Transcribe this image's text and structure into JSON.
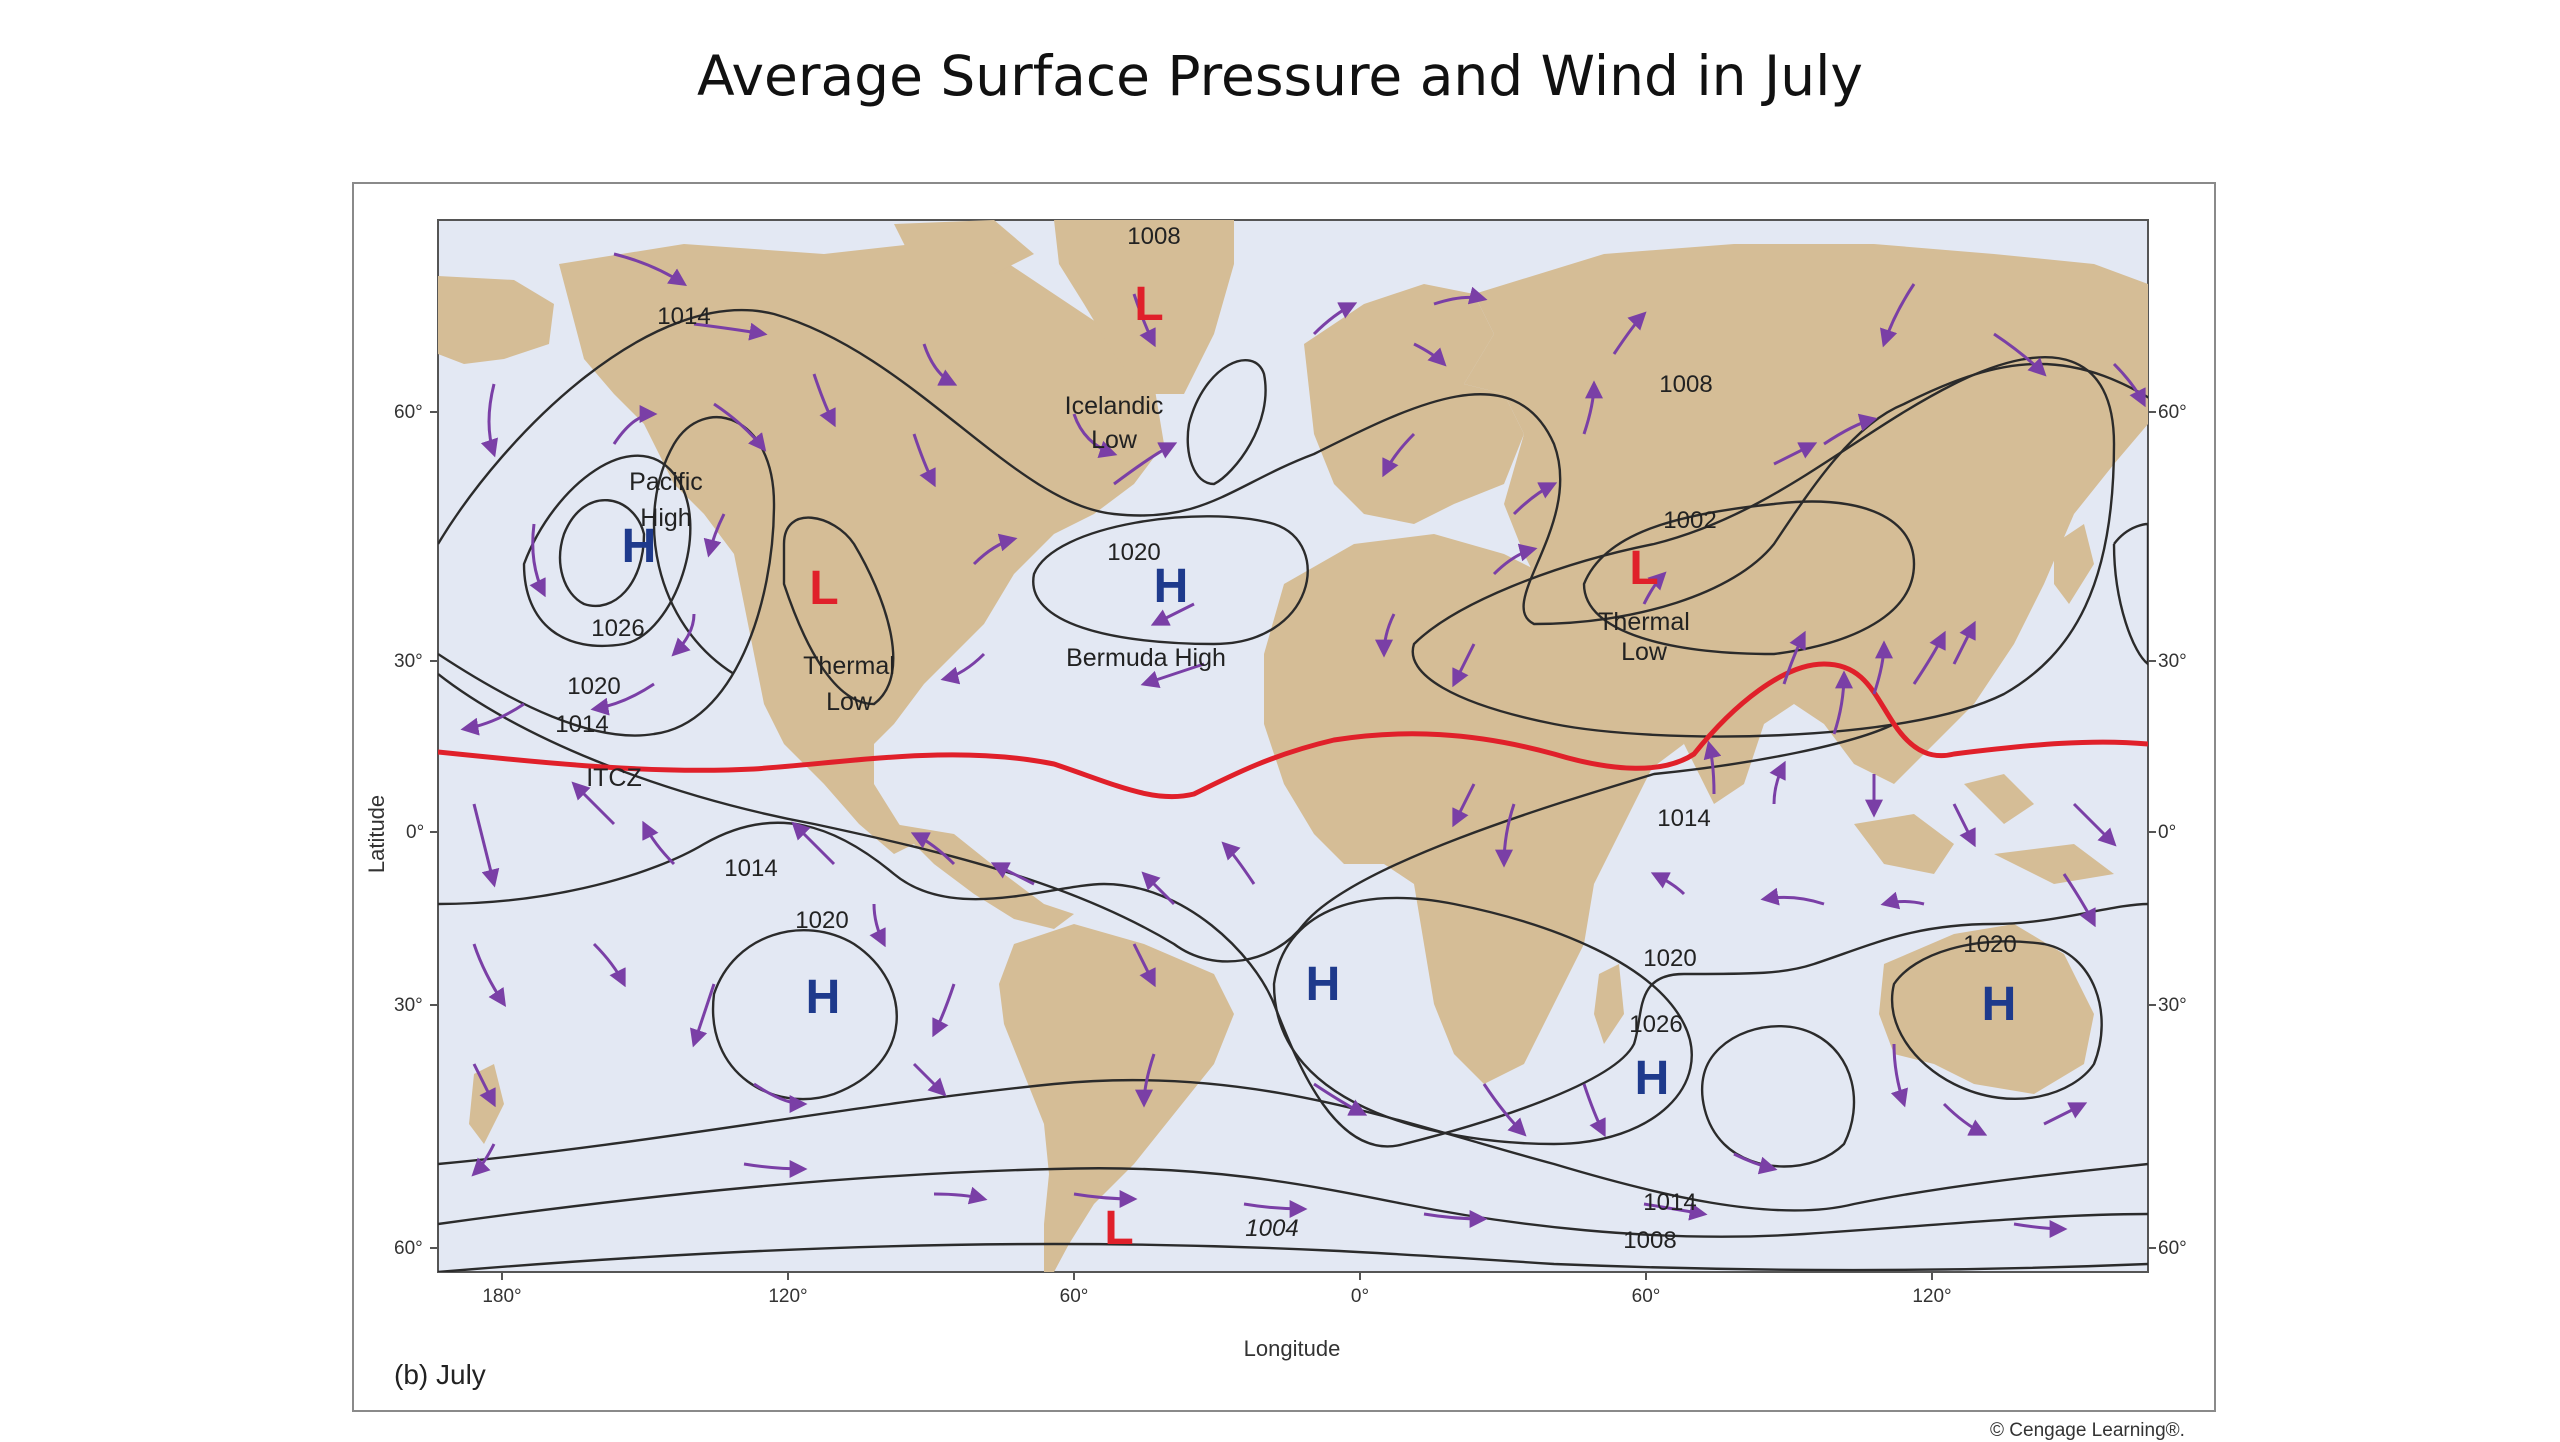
{
  "slide": {
    "title": "Average Surface Pressure and Wind in July"
  },
  "figure": {
    "caption": "(b) July",
    "credit": "© Cengage Learning®.",
    "x_axis_label": "Longitude",
    "y_axis_label": "Latitude",
    "longitude_ticks": [
      "180°",
      "120°",
      "60°",
      "0°",
      "60°",
      "120°"
    ],
    "latitude_ticks": [
      "60°",
      "30°",
      "0°",
      "30°",
      "60°"
    ],
    "colors": {
      "ocean": "#e3e8f3",
      "land": "#d5bd96",
      "isobar": "#2b2b2b",
      "itcz": "#e0202a",
      "high": "#1e3a8c",
      "low": "#e0202a",
      "wind_arrow": "#7a3fa6"
    }
  },
  "pressure_centers": [
    {
      "symbol": "L",
      "kind": "low"
    },
    {
      "symbol": "H",
      "kind": "high",
      "name_line1": "Pacific",
      "name_line2": "High"
    },
    {
      "symbol": "L",
      "kind": "low",
      "name_line1": "Thermal",
      "name_line2": "Low"
    },
    {
      "symbol": "H",
      "kind": "high",
      "name": "Bermuda High"
    },
    {
      "symbol": "L",
      "kind": "low",
      "name_line1": "Thermal",
      "name_line2": "Low"
    },
    {
      "symbol": "H",
      "kind": "high"
    },
    {
      "symbol": "H",
      "kind": "high"
    },
    {
      "symbol": "H",
      "kind": "high"
    },
    {
      "symbol": "H",
      "kind": "high"
    },
    {
      "symbol": "L",
      "kind": "low"
    }
  ],
  "named_features": {
    "icelandic_low_line1": "Icelandic",
    "icelandic_low_line2": "Low",
    "itcz": "ITCZ"
  },
  "isobar_labels": [
    "1008",
    "1014",
    "1008",
    "1002",
    "1020",
    "1026",
    "1020",
    "1014",
    "1014",
    "1014",
    "1020",
    "1020",
    "1026",
    "1020",
    "1014",
    "1008",
    "1004"
  ]
}
